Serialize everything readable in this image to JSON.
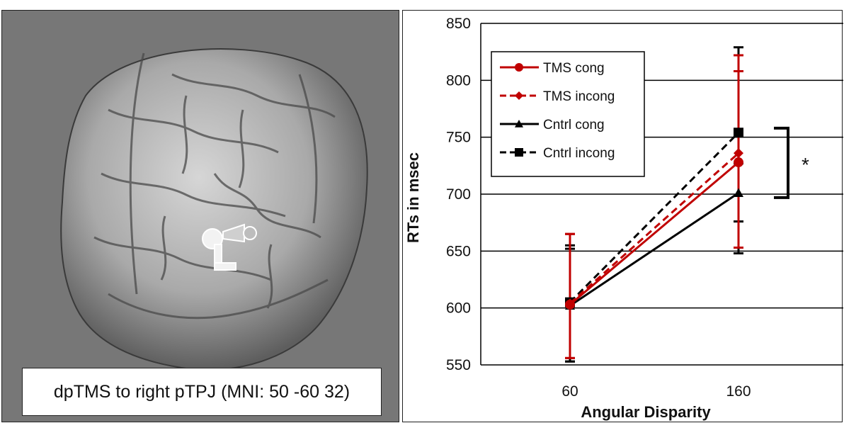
{
  "caption": "dpTMS to right pTPJ (MNI: 50 -60 32)",
  "chart_data": {
    "type": "line",
    "xlabel": "Angular Disparity",
    "ylabel": "RTs in msec",
    "categories": [
      "60",
      "160"
    ],
    "ylim": [
      550,
      850
    ],
    "yticks": [
      550,
      600,
      650,
      700,
      750,
      800,
      850
    ],
    "grid": "horizontal",
    "legend_position": "top-left",
    "series": [
      {
        "name": "TMS cong",
        "values": [
          603,
          728
        ],
        "err": [
          [
            556,
            665
          ],
          [
            653,
            822
          ]
        ],
        "color": "#c00000",
        "dash": "solid",
        "marker": "circle"
      },
      {
        "name": "TMS incong",
        "values": [
          604,
          736
        ],
        "err": [
          [
            556,
            665
          ],
          [
            653,
            808
          ]
        ],
        "color": "#c00000",
        "dash": "dashed",
        "marker": "diamond"
      },
      {
        "name": "Cntrl cong",
        "values": [
          602,
          701
        ],
        "err": [
          [
            553,
            652
          ],
          [
            676,
            727
          ]
        ],
        "color": "#000000",
        "dash": "solid",
        "marker": "triangle"
      },
      {
        "name": "Cntrl incong",
        "values": [
          605,
          754
        ],
        "err": [
          [
            553,
            655
          ],
          [
            648,
            829
          ]
        ],
        "color": "#000000",
        "dash": "dashed",
        "marker": "square"
      }
    ],
    "annotation": "*"
  }
}
